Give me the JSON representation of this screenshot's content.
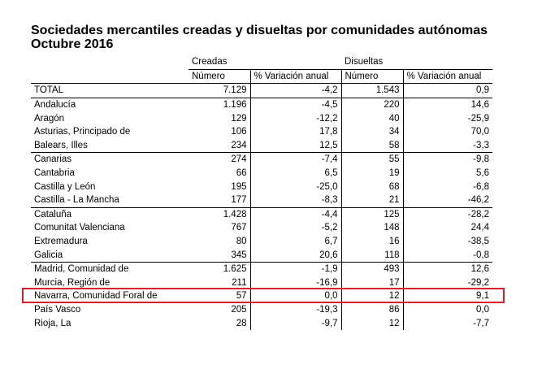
{
  "title": {
    "line1": "Sociedades mercantiles creadas y disueltas por comunidades autónomas",
    "line2": "Octubre 2016"
  },
  "headers": {
    "group_created": "Creadas",
    "group_dissolved": "Disueltas",
    "num": "Número",
    "var": "% Variación anual"
  },
  "rows": [
    {
      "name": "TOTAL",
      "c_num": "7.129",
      "c_var": "-4,2",
      "d_num": "1.543",
      "d_var": "0,9",
      "sep": false
    },
    {
      "name": "Andalucía",
      "c_num": "1.196",
      "c_var": "-4,5",
      "d_num": "220",
      "d_var": "14,6",
      "sep": true
    },
    {
      "name": "Aragón",
      "c_num": "129",
      "c_var": "-12,2",
      "d_num": "40",
      "d_var": "-25,9",
      "sep": false
    },
    {
      "name": "Asturias, Principado de",
      "c_num": "106",
      "c_var": "17,8",
      "d_num": "34",
      "d_var": "70,0",
      "sep": false
    },
    {
      "name": "Balears, Illes",
      "c_num": "234",
      "c_var": "12,5",
      "d_num": "58",
      "d_var": "-3,3",
      "sep": false
    },
    {
      "name": "Canarias",
      "c_num": "274",
      "c_var": "-7,4",
      "d_num": "55",
      "d_var": "-9,8",
      "sep": true
    },
    {
      "name": "Cantabria",
      "c_num": "66",
      "c_var": "6,5",
      "d_num": "19",
      "d_var": "5,6",
      "sep": false
    },
    {
      "name": "Castilla y León",
      "c_num": "195",
      "c_var": "-25,0",
      "d_num": "68",
      "d_var": "-6,8",
      "sep": false
    },
    {
      "name": "Castilla - La Mancha",
      "c_num": "177",
      "c_var": "-8,3",
      "d_num": "21",
      "d_var": "-46,2",
      "sep": false
    },
    {
      "name": "Cataluña",
      "c_num": "1.428",
      "c_var": "-4,4",
      "d_num": "125",
      "d_var": "-28,2",
      "sep": true
    },
    {
      "name": "Comunitat Valenciana",
      "c_num": "767",
      "c_var": "-5,2",
      "d_num": "148",
      "d_var": "24,4",
      "sep": false
    },
    {
      "name": "Extremadura",
      "c_num": "80",
      "c_var": "6,7",
      "d_num": "16",
      "d_var": "-38,5",
      "sep": false
    },
    {
      "name": "Galicia",
      "c_num": "345",
      "c_var": "20,6",
      "d_num": "118",
      "d_var": "-0,8",
      "sep": false
    },
    {
      "name": "Madrid, Comunidad de",
      "c_num": "1.625",
      "c_var": "-1,9",
      "d_num": "493",
      "d_var": "12,6",
      "sep": true
    },
    {
      "name": "Murcia, Región de",
      "c_num": "211",
      "c_var": "-16,9",
      "d_num": "17",
      "d_var": "-29,2",
      "sep": false
    },
    {
      "name": "Navarra, Comunidad Foral de",
      "c_num": "57",
      "c_var": "0,0",
      "d_num": "12",
      "d_var": "9,1",
      "sep": false
    },
    {
      "name": "País Vasco",
      "c_num": "205",
      "c_var": "-19,3",
      "d_num": "86",
      "d_var": "0,0",
      "sep": false
    },
    {
      "name": "Rioja, La",
      "c_num": "28",
      "c_var": "-9,7",
      "d_num": "12",
      "d_var": "-7,7",
      "sep": false
    }
  ],
  "highlight_color": "#d3202a"
}
